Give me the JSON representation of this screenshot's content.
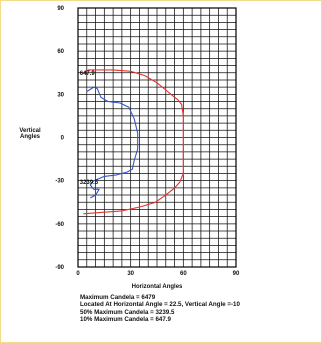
{
  "chart_data": {
    "type": "line",
    "xlabel": "Horizontal Angles",
    "ylabel": [
      "Vertical",
      "Angles"
    ],
    "xlim": [
      0,
      90
    ],
    "ylim": [
      -90,
      90
    ],
    "x_ticks": [
      "0",
      "30",
      "60",
      "90"
    ],
    "y_ticks": [
      "90",
      "60",
      "30",
      "0",
      "-30",
      "-60",
      "-90"
    ],
    "grid": true,
    "series": [
      {
        "color": "#e8322c",
        "points": [
          [
            3,
            45
          ],
          [
            6,
            47
          ],
          [
            10,
            47
          ],
          [
            20,
            47
          ],
          [
            30,
            46
          ],
          [
            38,
            43
          ],
          [
            45,
            38
          ],
          [
            50,
            33
          ],
          [
            54,
            29
          ],
          [
            57,
            26
          ],
          [
            59,
            23
          ],
          [
            60,
            15
          ],
          [
            60,
            0
          ],
          [
            60,
            -15
          ],
          [
            60,
            -25
          ],
          [
            58,
            -31
          ],
          [
            55,
            -35
          ],
          [
            50,
            -40
          ],
          [
            44,
            -45
          ],
          [
            36,
            -48
          ],
          [
            25,
            -51
          ],
          [
            14,
            -52
          ],
          [
            3,
            -53
          ]
        ]
      },
      {
        "color": "#3355cc",
        "points": [
          [
            5,
            32
          ],
          [
            9,
            35
          ],
          [
            11,
            34
          ],
          [
            13,
            28
          ],
          [
            17,
            25
          ],
          [
            24,
            24
          ],
          [
            29,
            21
          ],
          [
            32,
            13
          ],
          [
            34,
            3
          ],
          [
            34,
            -8
          ],
          [
            32,
            -16
          ],
          [
            31,
            -22
          ],
          [
            28,
            -24
          ],
          [
            22,
            -26
          ],
          [
            15,
            -27
          ],
          [
            9,
            -30
          ],
          [
            7,
            -33
          ],
          [
            9,
            -36
          ],
          [
            12,
            -36
          ],
          [
            10,
            -40
          ],
          [
            7,
            -42
          ]
        ]
      }
    ],
    "annotations": [
      {
        "text": "647.9",
        "x": 1,
        "y": 45
      },
      {
        "text": "3239.5",
        "x": 1,
        "y": -31
      }
    ]
  },
  "stats": {
    "max_candela": "Maximum Candela = 6479",
    "located_at": "Located At Horizontal Angle = 22.5, Vertical Angle =-10",
    "fifty_percent": "50% Maximum Candela = 3239.5",
    "ten_percent": "10% Maximum Candela = 647.9"
  }
}
